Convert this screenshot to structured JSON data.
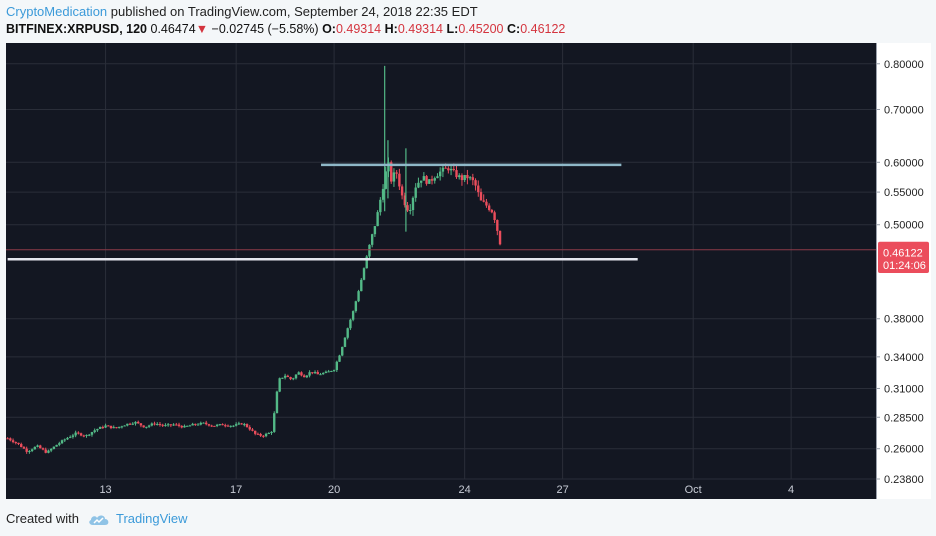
{
  "header": {
    "author": "CryptoMedication",
    "published_text": " published on TradingView.com, September 24, 2018 22:35 EDT",
    "symbol": "BITFINEX:XRPUSD, 120",
    "last": "0.46474",
    "arrow": "▼",
    "change": "−0.02745 (−5.58%)",
    "o_label": "O:",
    "o_value": "0.49314",
    "h_label": "H:",
    "h_value": "0.49314",
    "l_label": "L:",
    "l_value": "0.45200",
    "c_label": "C:",
    "c_value": "0.46122"
  },
  "footer": {
    "created_with": "Created with",
    "brand": "TradingView"
  },
  "colors": {
    "background": "#131722",
    "up": "#53b987",
    "down": "#eb4d5c",
    "grid": "#2a2e39",
    "resistance": "#8fb8c8",
    "support": "#e4e6ee",
    "price_line": "#8b3a48",
    "axis_text": "#222222",
    "brand": "#3b9ad9"
  },
  "chart_data": {
    "type": "candlestick",
    "symbol": "BITFINEX:XRPUSD",
    "interval": "120",
    "y_scale": "log",
    "y_ticks": [
      "0.80000",
      "0.70000",
      "0.60000",
      "0.55000",
      "0.50000",
      "0.38000",
      "0.34000",
      "0.31000",
      "0.28500",
      "0.26000",
      "0.23800"
    ],
    "x_ticks": [
      "13",
      "17",
      "20",
      "24",
      "27",
      "Oct",
      "4"
    ],
    "ylim": [
      0.238,
      0.85
    ],
    "grid": true,
    "price_labels": [
      {
        "text": "0.46474",
        "value": 0.46474,
        "color": "#eb4d5c"
      },
      {
        "text": "0.46122",
        "value": 0.46122,
        "color": "#eb4d5c"
      },
      {
        "text": "01:24:06",
        "value": 0.4445,
        "color": "#eb4d5c"
      }
    ],
    "horizontal_lines": [
      {
        "name": "resistance",
        "value": 0.5955,
        "from_day": 19.6,
        "to_day": 28.8
      },
      {
        "name": "support",
        "value": 0.452,
        "from_day": 10.0,
        "to_day": 29.3
      }
    ],
    "price_path": [
      [
        10.0,
        0.268
      ],
      [
        10.3,
        0.264
      ],
      [
        10.6,
        0.258
      ],
      [
        10.9,
        0.262
      ],
      [
        11.2,
        0.257
      ],
      [
        11.5,
        0.263
      ],
      [
        11.8,
        0.268
      ],
      [
        12.1,
        0.272
      ],
      [
        12.4,
        0.27
      ],
      [
        12.7,
        0.275
      ],
      [
        13.0,
        0.278
      ],
      [
        13.3,
        0.276
      ],
      [
        13.6,
        0.279
      ],
      [
        13.9,
        0.281
      ],
      [
        14.2,
        0.277
      ],
      [
        14.5,
        0.28
      ],
      [
        14.8,
        0.278
      ],
      [
        15.1,
        0.279
      ],
      [
        15.4,
        0.277
      ],
      [
        15.7,
        0.279
      ],
      [
        16.0,
        0.28
      ],
      [
        16.3,
        0.278
      ],
      [
        16.6,
        0.279
      ],
      [
        16.9,
        0.278
      ],
      [
        17.2,
        0.28
      ],
      [
        17.4,
        0.276
      ],
      [
        17.6,
        0.271
      ],
      [
        17.8,
        0.27
      ],
      [
        18.0,
        0.272
      ],
      [
        18.1,
        0.274
      ],
      [
        18.2,
        0.295
      ],
      [
        18.3,
        0.318
      ],
      [
        18.5,
        0.322
      ],
      [
        18.7,
        0.318
      ],
      [
        18.9,
        0.325
      ],
      [
        19.1,
        0.321
      ],
      [
        19.3,
        0.326
      ],
      [
        19.5,
        0.323
      ],
      [
        19.8,
        0.325
      ],
      [
        20.0,
        0.328
      ],
      [
        20.2,
        0.345
      ],
      [
        20.4,
        0.368
      ],
      [
        20.6,
        0.39
      ],
      [
        20.8,
        0.42
      ],
      [
        21.0,
        0.455
      ],
      [
        21.2,
        0.49
      ],
      [
        21.35,
        0.52
      ],
      [
        21.5,
        0.56
      ],
      [
        21.65,
        0.6
      ],
      [
        21.75,
        0.57
      ],
      [
        21.9,
        0.585
      ],
      [
        22.1,
        0.54
      ],
      [
        22.3,
        0.52
      ],
      [
        22.5,
        0.56
      ],
      [
        22.7,
        0.575
      ],
      [
        22.9,
        0.565
      ],
      [
        23.1,
        0.578
      ],
      [
        23.3,
        0.585
      ],
      [
        23.5,
        0.59
      ],
      [
        23.7,
        0.58
      ],
      [
        23.9,
        0.572
      ],
      [
        24.1,
        0.575
      ],
      [
        24.3,
        0.565
      ],
      [
        24.5,
        0.535
      ],
      [
        24.7,
        0.528
      ],
      [
        24.85,
        0.52
      ],
      [
        24.95,
        0.505
      ],
      [
        25.05,
        0.48
      ],
      [
        25.15,
        0.465
      ]
    ],
    "spike_wicks": [
      {
        "day": 21.55,
        "high": 0.795,
        "low": 0.52
      },
      {
        "day": 21.65,
        "high": 0.64,
        "low": 0.54
      },
      {
        "day": 22.2,
        "high": 0.625,
        "low": 0.49
      }
    ]
  }
}
